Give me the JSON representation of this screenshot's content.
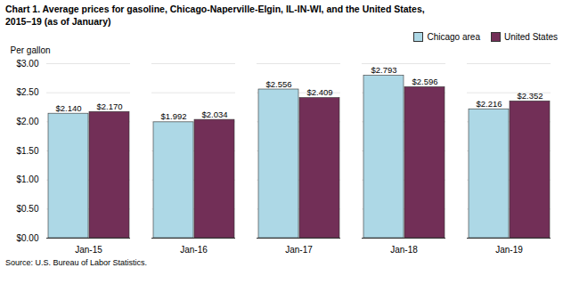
{
  "chart_data": {
    "type": "bar",
    "title": "Chart 1. Average prices for gasoline, Chicago-Naperville-Elgin, IL-IN-WI, and the United States,",
    "subtitle": "2015–19  (as of January)",
    "y_label": "Per gallon",
    "caption": "Source: U.S. Bureau of Labor Statistics.",
    "categories": [
      "Jan-15",
      "Jan-16",
      "Jan-17",
      "Jan-18",
      "Jan-19"
    ],
    "series": [
      {
        "name": "Chicago area",
        "color": "#ADD8E6",
        "values": [
          2.14,
          1.992,
          2.556,
          2.793,
          2.216
        ],
        "value_labels": [
          "$2.140",
          "$1.992",
          "$2.556",
          "$2.793",
          "$2.216"
        ]
      },
      {
        "name": "United States",
        "color": "#722F57",
        "values": [
          2.17,
          2.034,
          2.409,
          2.596,
          2.352
        ],
        "value_labels": [
          "$2.170",
          "$2.034",
          "$2.409",
          "$2.596",
          "$2.352"
        ]
      }
    ],
    "ylim": [
      0.0,
      3.0
    ],
    "yticks": [
      {
        "value": 0.0,
        "label": "$0.00"
      },
      {
        "value": 0.5,
        "label": "$0.50"
      },
      {
        "value": 1.0,
        "label": "$1.00"
      },
      {
        "value": 1.5,
        "label": "$1.50"
      },
      {
        "value": 2.0,
        "label": "$2.00"
      },
      {
        "value": 2.5,
        "label": "$2.50"
      },
      {
        "value": 3.0,
        "label": "$3.00"
      }
    ],
    "grid": true,
    "legend": "upper right",
    "data_labels": true
  }
}
